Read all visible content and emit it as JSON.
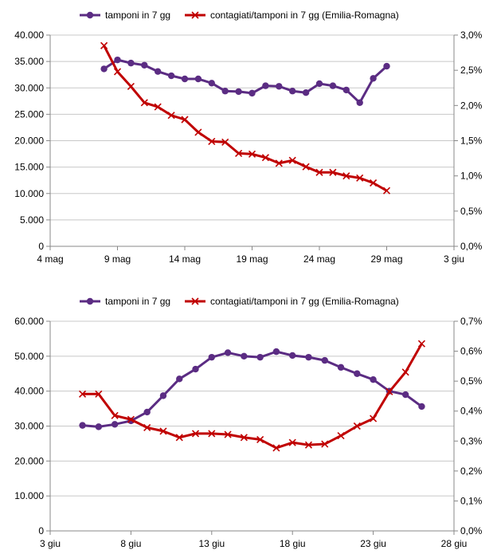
{
  "colors": {
    "tamponi": "#5B2C83",
    "ratio": "#C00000",
    "axis": "#888888",
    "grid": "#C8C8C8"
  },
  "chart_data": [
    {
      "type": "line",
      "legend_position": "top",
      "grid": {
        "horizontal": true
      },
      "x_axis": {
        "type": "date",
        "range": [
          "2020-05-04",
          "2020-06-03"
        ],
        "tick_labels": [
          "4 mag",
          "9 mag",
          "14 mag",
          "19 mag",
          "24 mag",
          "29 mag",
          "3 giu"
        ]
      },
      "y_left": {
        "range": [
          0,
          40000
        ],
        "tick_labels": [
          "0",
          "5.000",
          "10.000",
          "15.000",
          "20.000",
          "25.000",
          "30.000",
          "35.000",
          "40.000"
        ]
      },
      "y_right": {
        "range": [
          0,
          3.0
        ],
        "unit": "%",
        "tick_labels": [
          "0,0%",
          "0,5%",
          "1,0%",
          "1,5%",
          "2,0%",
          "2,5%",
          "3,0%"
        ]
      },
      "series": [
        {
          "name": "tamponi in 7 gg",
          "axis": "left",
          "marker": "circle",
          "x": [
            "2020-05-08",
            "2020-05-09",
            "2020-05-10",
            "2020-05-11",
            "2020-05-12",
            "2020-05-13",
            "2020-05-14",
            "2020-05-15",
            "2020-05-16",
            "2020-05-17",
            "2020-05-18",
            "2020-05-19",
            "2020-05-20",
            "2020-05-21",
            "2020-05-22",
            "2020-05-23",
            "2020-05-24",
            "2020-05-25",
            "2020-05-26",
            "2020-05-27",
            "2020-05-28",
            "2020-05-29"
          ],
          "values": [
            33600,
            35300,
            34700,
            34300,
            33100,
            32300,
            31700,
            31700,
            30900,
            29400,
            29300,
            29000,
            30400,
            30300,
            29400,
            29100,
            30800,
            30400,
            29600,
            27200,
            31800,
            34100
          ]
        },
        {
          "name": "contagiati/tamponi in 7 gg (Emilia-Romagna)",
          "axis": "right",
          "marker": "x",
          "x": [
            "2020-05-08",
            "2020-05-09",
            "2020-05-10",
            "2020-05-11",
            "2020-05-12",
            "2020-05-13",
            "2020-05-14",
            "2020-05-15",
            "2020-05-16",
            "2020-05-17",
            "2020-05-18",
            "2020-05-19",
            "2020-05-20",
            "2020-05-21",
            "2020-05-22",
            "2020-05-23",
            "2020-05-24",
            "2020-05-25",
            "2020-05-26",
            "2020-05-27",
            "2020-05-28",
            "2020-05-29"
          ],
          "values": [
            2.85,
            2.48,
            2.27,
            2.04,
            1.98,
            1.86,
            1.8,
            1.62,
            1.49,
            1.48,
            1.32,
            1.31,
            1.26,
            1.18,
            1.22,
            1.13,
            1.05,
            1.05,
            1.0,
            0.97,
            0.9,
            0.79
          ]
        }
      ]
    },
    {
      "type": "line",
      "legend_position": "top",
      "grid": {
        "horizontal": true
      },
      "x_axis": {
        "type": "date",
        "range": [
          "2020-06-03",
          "2020-06-28"
        ],
        "tick_labels": [
          "3 giu",
          "8 giu",
          "13 giu",
          "18 giu",
          "23 giu",
          "28 giu"
        ]
      },
      "y_left": {
        "range": [
          0,
          60000
        ],
        "tick_labels": [
          "0",
          "10.000",
          "20.000",
          "30.000",
          "40.000",
          "50.000",
          "60.000"
        ]
      },
      "y_right": {
        "range": [
          0,
          0.7
        ],
        "unit": "%",
        "tick_labels": [
          "0,0%",
          "0,1%",
          "0,2%",
          "0,3%",
          "0,4%",
          "0,5%",
          "0,6%",
          "0,7%"
        ]
      },
      "series": [
        {
          "name": "tamponi in 7 gg",
          "axis": "left",
          "marker": "circle",
          "x": [
            "2020-06-05",
            "2020-06-06",
            "2020-06-07",
            "2020-06-08",
            "2020-06-09",
            "2020-06-10",
            "2020-06-11",
            "2020-06-12",
            "2020-06-13",
            "2020-06-14",
            "2020-06-15",
            "2020-06-16",
            "2020-06-17",
            "2020-06-18",
            "2020-06-19",
            "2020-06-20",
            "2020-06-21",
            "2020-06-22",
            "2020-06-23",
            "2020-06-24",
            "2020-06-25",
            "2020-06-26"
          ],
          "values": [
            30200,
            29800,
            30500,
            31500,
            34000,
            38700,
            43500,
            46300,
            49700,
            51000,
            50000,
            49700,
            51300,
            50200,
            49700,
            48800,
            46800,
            45000,
            43300,
            40000,
            39000,
            35600
          ]
        },
        {
          "name": "contagiati/tamponi in 7 gg (Emilia-Romagna)",
          "axis": "right",
          "marker": "x",
          "x": [
            "2020-06-05",
            "2020-06-06",
            "2020-06-07",
            "2020-06-08",
            "2020-06-09",
            "2020-06-10",
            "2020-06-11",
            "2020-06-12",
            "2020-06-13",
            "2020-06-14",
            "2020-06-15",
            "2020-06-16",
            "2020-06-17",
            "2020-06-18",
            "2020-06-19",
            "2020-06-20",
            "2020-06-21",
            "2020-06-22",
            "2020-06-23",
            "2020-06-24",
            "2020-06-25",
            "2020-06-26"
          ],
          "values": [
            0.457,
            0.457,
            0.385,
            0.372,
            0.345,
            0.333,
            0.312,
            0.325,
            0.325,
            0.322,
            0.312,
            0.305,
            0.277,
            0.295,
            0.287,
            0.29,
            0.318,
            0.35,
            0.375,
            0.465,
            0.53,
            0.625
          ]
        }
      ]
    }
  ]
}
